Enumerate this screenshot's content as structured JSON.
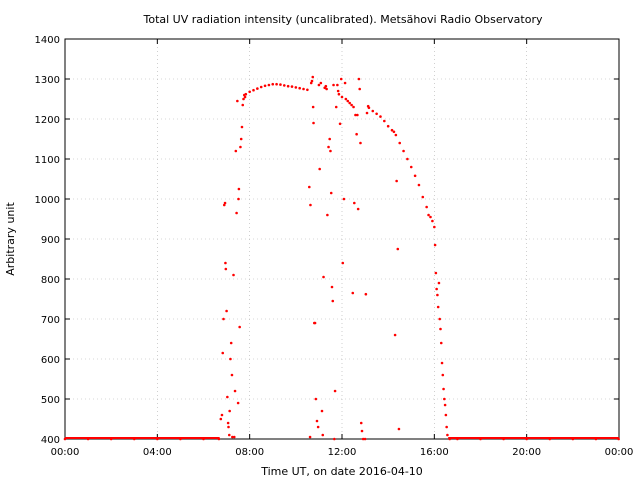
{
  "chart_data": {
    "type": "scatter",
    "title": "Total UV radiation intensity (uncalibrated). Metsähovi Radio Observatory",
    "xlabel": "Time UT, on date 2016-04-10",
    "ylabel": "Arbitrary unit",
    "xlim": [
      "00:00",
      "24:00"
    ],
    "ylim": [
      400,
      1400
    ],
    "x_ticks": [
      "00:00",
      "04:00",
      "08:00",
      "12:00",
      "16:00",
      "20:00",
      "00:00"
    ],
    "y_ticks": [
      400,
      500,
      600,
      700,
      800,
      900,
      1000,
      1100,
      1200,
      1300,
      1400
    ],
    "grid": true,
    "color": "#ff0000",
    "series": [
      {
        "points": [
          [
            "00:00",
            400
          ],
          [
            "01:00",
            400
          ],
          [
            "02:00",
            400
          ],
          [
            "03:00",
            400
          ],
          [
            "04:00",
            400
          ],
          [
            "05:00",
            400
          ],
          [
            "06:00",
            400
          ],
          [
            "06:40",
            400
          ],
          [
            "06:45",
            450
          ],
          [
            "06:48",
            460
          ],
          [
            "06:50",
            615
          ],
          [
            "06:52",
            700
          ],
          [
            "06:54",
            985
          ],
          [
            "06:56",
            990
          ],
          [
            "06:57",
            840
          ],
          [
            "06:58",
            825
          ],
          [
            "07:00",
            720
          ],
          [
            "07:02",
            505
          ],
          [
            "07:04",
            440
          ],
          [
            "07:05",
            430
          ],
          [
            "07:07",
            410
          ],
          [
            "07:08",
            470
          ],
          [
            "07:10",
            600
          ],
          [
            "07:12",
            640
          ],
          [
            "07:14",
            560
          ],
          [
            "07:15",
            405
          ],
          [
            "07:18",
            810
          ],
          [
            "07:20",
            405
          ],
          [
            "07:22",
            520
          ],
          [
            "07:24",
            1120
          ],
          [
            "07:26",
            965
          ],
          [
            "07:28",
            1245
          ],
          [
            "07:30",
            490
          ],
          [
            "07:31",
            1000
          ],
          [
            "07:32",
            1025
          ],
          [
            "07:34",
            680
          ],
          [
            "07:36",
            1130
          ],
          [
            "07:38",
            1150
          ],
          [
            "07:40",
            1180
          ],
          [
            "07:42",
            1235
          ],
          [
            "07:44",
            1250
          ],
          [
            "07:46",
            1260
          ],
          [
            "07:48",
            1255
          ],
          [
            "07:50",
            1262
          ],
          [
            "08:00",
            1268
          ],
          [
            "08:10",
            1272
          ],
          [
            "08:20",
            1276
          ],
          [
            "08:30",
            1280
          ],
          [
            "08:40",
            1283
          ],
          [
            "08:50",
            1285
          ],
          [
            "09:00",
            1287
          ],
          [
            "09:10",
            1287
          ],
          [
            "09:20",
            1286
          ],
          [
            "09:30",
            1284
          ],
          [
            "09:40",
            1282
          ],
          [
            "09:50",
            1281
          ],
          [
            "10:00",
            1279
          ],
          [
            "10:10",
            1277
          ],
          [
            "10:20",
            1275
          ],
          [
            "10:30",
            1273
          ],
          [
            "10:35",
            1030
          ],
          [
            "10:37",
            405
          ],
          [
            "10:38",
            985
          ],
          [
            "10:40",
            1290
          ],
          [
            "10:42",
            1295
          ],
          [
            "10:44",
            1305
          ],
          [
            "10:45",
            1230
          ],
          [
            "10:46",
            1190
          ],
          [
            "10:48",
            690
          ],
          [
            "10:50",
            690
          ],
          [
            "10:52",
            500
          ],
          [
            "10:55",
            445
          ],
          [
            "10:58",
            430
          ],
          [
            "11:00",
            1285
          ],
          [
            "11:02",
            1075
          ],
          [
            "11:05",
            1290
          ],
          [
            "11:08",
            470
          ],
          [
            "11:10",
            410
          ],
          [
            "11:12",
            805
          ],
          [
            "11:15",
            1278
          ],
          [
            "11:18",
            1282
          ],
          [
            "11:20",
            1275
          ],
          [
            "11:22",
            960
          ],
          [
            "11:25",
            1130
          ],
          [
            "11:28",
            1150
          ],
          [
            "11:30",
            1120
          ],
          [
            "11:32",
            1015
          ],
          [
            "11:34",
            780
          ],
          [
            "11:36",
            745
          ],
          [
            "11:38",
            1285
          ],
          [
            "11:40",
            400
          ],
          [
            "11:42",
            520
          ],
          [
            "11:45",
            1230
          ],
          [
            "11:48",
            1285
          ],
          [
            "11:50",
            1270
          ],
          [
            "11:52",
            1262
          ],
          [
            "11:55",
            1188
          ],
          [
            "11:58",
            1300
          ],
          [
            "12:00",
            1255
          ],
          [
            "12:02",
            840
          ],
          [
            "12:05",
            1000
          ],
          [
            "12:08",
            1290
          ],
          [
            "12:10",
            1250
          ],
          [
            "12:15",
            1245
          ],
          [
            "12:20",
            1240
          ],
          [
            "12:25",
            1235
          ],
          [
            "12:28",
            765
          ],
          [
            "12:30",
            1230
          ],
          [
            "12:32",
            990
          ],
          [
            "12:35",
            1210
          ],
          [
            "12:38",
            1162
          ],
          [
            "12:40",
            1210
          ],
          [
            "12:42",
            975
          ],
          [
            "12:44",
            1300
          ],
          [
            "12:46",
            1275
          ],
          [
            "12:48",
            1140
          ],
          [
            "12:50",
            440
          ],
          [
            "12:52",
            420
          ],
          [
            "12:55",
            400
          ],
          [
            "13:00",
            400
          ],
          [
            "13:02",
            762
          ],
          [
            "13:05",
            1215
          ],
          [
            "13:08",
            1232
          ],
          [
            "13:10",
            1228
          ],
          [
            "13:20",
            1220
          ],
          [
            "13:30",
            1213
          ],
          [
            "13:40",
            1206
          ],
          [
            "13:50",
            1195
          ],
          [
            "14:00",
            1182
          ],
          [
            "14:10",
            1172
          ],
          [
            "14:15",
            1168
          ],
          [
            "14:18",
            660
          ],
          [
            "14:20",
            1160
          ],
          [
            "14:22",
            1045
          ],
          [
            "14:25",
            875
          ],
          [
            "14:28",
            425
          ],
          [
            "14:30",
            1140
          ],
          [
            "14:40",
            1120
          ],
          [
            "14:50",
            1100
          ],
          [
            "15:00",
            1080
          ],
          [
            "15:10",
            1058
          ],
          [
            "15:20",
            1035
          ],
          [
            "15:30",
            1005
          ],
          [
            "15:40",
            980
          ],
          [
            "15:45",
            960
          ],
          [
            "15:50",
            955
          ],
          [
            "15:55",
            945
          ],
          [
            "16:00",
            930
          ],
          [
            "16:02",
            885
          ],
          [
            "16:04",
            815
          ],
          [
            "16:06",
            775
          ],
          [
            "16:08",
            760
          ],
          [
            "16:10",
            730
          ],
          [
            "16:12",
            790
          ],
          [
            "16:14",
            700
          ],
          [
            "16:16",
            675
          ],
          [
            "16:18",
            640
          ],
          [
            "16:20",
            590
          ],
          [
            "16:22",
            560
          ],
          [
            "16:24",
            525
          ],
          [
            "16:26",
            500
          ],
          [
            "16:28",
            485
          ],
          [
            "16:30",
            460
          ],
          [
            "16:32",
            430
          ],
          [
            "16:34",
            410
          ],
          [
            "16:40",
            400
          ],
          [
            "17:00",
            400
          ],
          [
            "18:00",
            400
          ],
          [
            "19:00",
            400
          ],
          [
            "20:00",
            400
          ],
          [
            "21:00",
            400
          ],
          [
            "22:00",
            400
          ],
          [
            "23:00",
            400
          ],
          [
            "23:59",
            400
          ]
        ]
      }
    ]
  }
}
